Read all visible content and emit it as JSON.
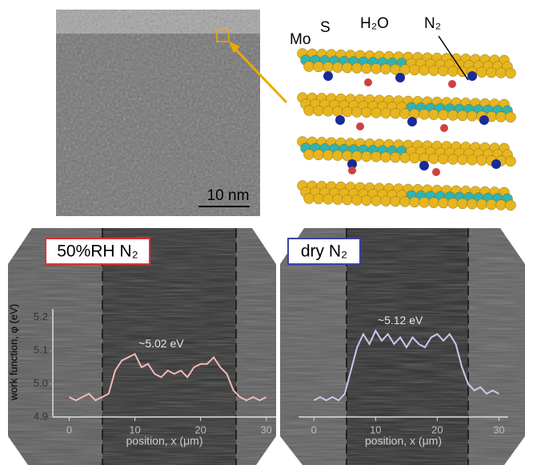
{
  "figure": {
    "scale_bar": "10 nm",
    "atom_labels": [
      "Mo",
      "S",
      "H₂O",
      "N₂"
    ]
  },
  "chart_data": [
    {
      "type": "line",
      "title": "50%RH N₂",
      "xlabel": "position, x (μm)",
      "ylabel": "work function, φ (eV)",
      "annotation": "~5.02 eV",
      "xlim": [
        -2.5,
        31.5
      ],
      "xticks": [
        0,
        10,
        20,
        30
      ],
      "ylim": [
        4.9,
        5.25
      ],
      "yticks": [
        4.9,
        {
          "value": 5,
          "label": "5.0"
        },
        5.1,
        5.2
      ],
      "x": [
        0,
        1,
        2,
        3,
        4,
        5,
        6,
        7,
        8,
        9,
        10,
        11,
        12,
        13,
        14,
        15,
        16,
        17,
        18,
        19,
        20,
        21,
        22,
        23,
        24,
        25,
        26,
        27,
        28,
        29,
        30
      ],
      "series": [
        {
          "color": "#f5b8b8",
          "values": [
            4.96,
            4.95,
            4.96,
            4.97,
            4.95,
            4.96,
            4.97,
            5.04,
            5.07,
            5.08,
            5.09,
            5.05,
            5.06,
            5.03,
            5.02,
            5.04,
            5.03,
            5.04,
            5.02,
            5.05,
            5.06,
            5.06,
            5.08,
            5.05,
            5.03,
            4.98,
            4.96,
            4.95,
            4.96,
            4.95,
            4.96
          ]
        }
      ]
    },
    {
      "type": "line",
      "title": "dry N₂",
      "xlabel": "position, x (μm)",
      "annotation": "~5.12 eV",
      "xlim": [
        -2.5,
        31.5
      ],
      "xticks": [
        0,
        10,
        20,
        30
      ],
      "ylim": [
        4.9,
        5.25
      ],
      "x": [
        0,
        1,
        2,
        3,
        4,
        5,
        6,
        7,
        8,
        9,
        10,
        11,
        12,
        13,
        14,
        15,
        16,
        17,
        18,
        19,
        20,
        21,
        22,
        23,
        24,
        25,
        26,
        27,
        28,
        29,
        30
      ],
      "series": [
        {
          "color": "#c8c8f2",
          "values": [
            4.95,
            4.96,
            4.95,
            4.96,
            4.95,
            4.97,
            5.04,
            5.11,
            5.15,
            5.12,
            5.16,
            5.13,
            5.15,
            5.12,
            5.14,
            5.11,
            5.14,
            5.12,
            5.11,
            5.14,
            5.15,
            5.13,
            5.15,
            5.12,
            5.05,
            5.0,
            4.98,
            4.99,
            4.97,
            4.98,
            4.97
          ]
        }
      ]
    }
  ]
}
